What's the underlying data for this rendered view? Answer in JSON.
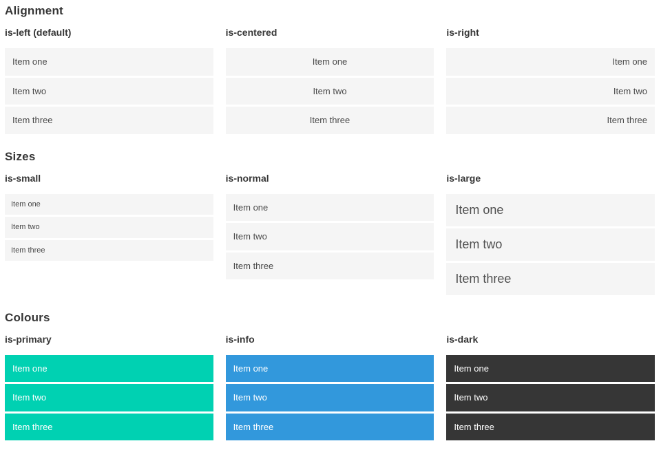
{
  "colors": {
    "primary": "#00d1b2",
    "info": "#3298dc",
    "dark": "#363636",
    "item_background": "#f5f5f5",
    "item_text": "#4a4a4a",
    "heading_text": "#363636",
    "page_background": "#ffffff"
  },
  "sections": [
    {
      "title": "Alignment",
      "columns": [
        {
          "subtitle": "is-left (default)",
          "items": [
            "Item one",
            "Item two",
            "Item three"
          ]
        },
        {
          "subtitle": "is-centered",
          "items": [
            "Item one",
            "Item two",
            "Item three"
          ]
        },
        {
          "subtitle": "is-right",
          "items": [
            "Item one",
            "Item two",
            "Item three"
          ]
        }
      ]
    },
    {
      "title": "Sizes",
      "columns": [
        {
          "subtitle": "is-small",
          "items": [
            "Item one",
            "Item two",
            "Item three"
          ]
        },
        {
          "subtitle": "is-normal",
          "items": [
            "Item one",
            "Item two",
            "Item three"
          ]
        },
        {
          "subtitle": "is-large",
          "items": [
            "Item one",
            "Item two",
            "Item three"
          ]
        }
      ]
    },
    {
      "title": "Colours",
      "columns": [
        {
          "subtitle": "is-primary",
          "items": [
            "Item one",
            "Item two",
            "Item three"
          ]
        },
        {
          "subtitle": "is-info",
          "items": [
            "Item one",
            "Item two",
            "Item three"
          ]
        },
        {
          "subtitle": "is-dark",
          "items": [
            "Item one",
            "Item two",
            "Item three"
          ]
        }
      ]
    }
  ]
}
